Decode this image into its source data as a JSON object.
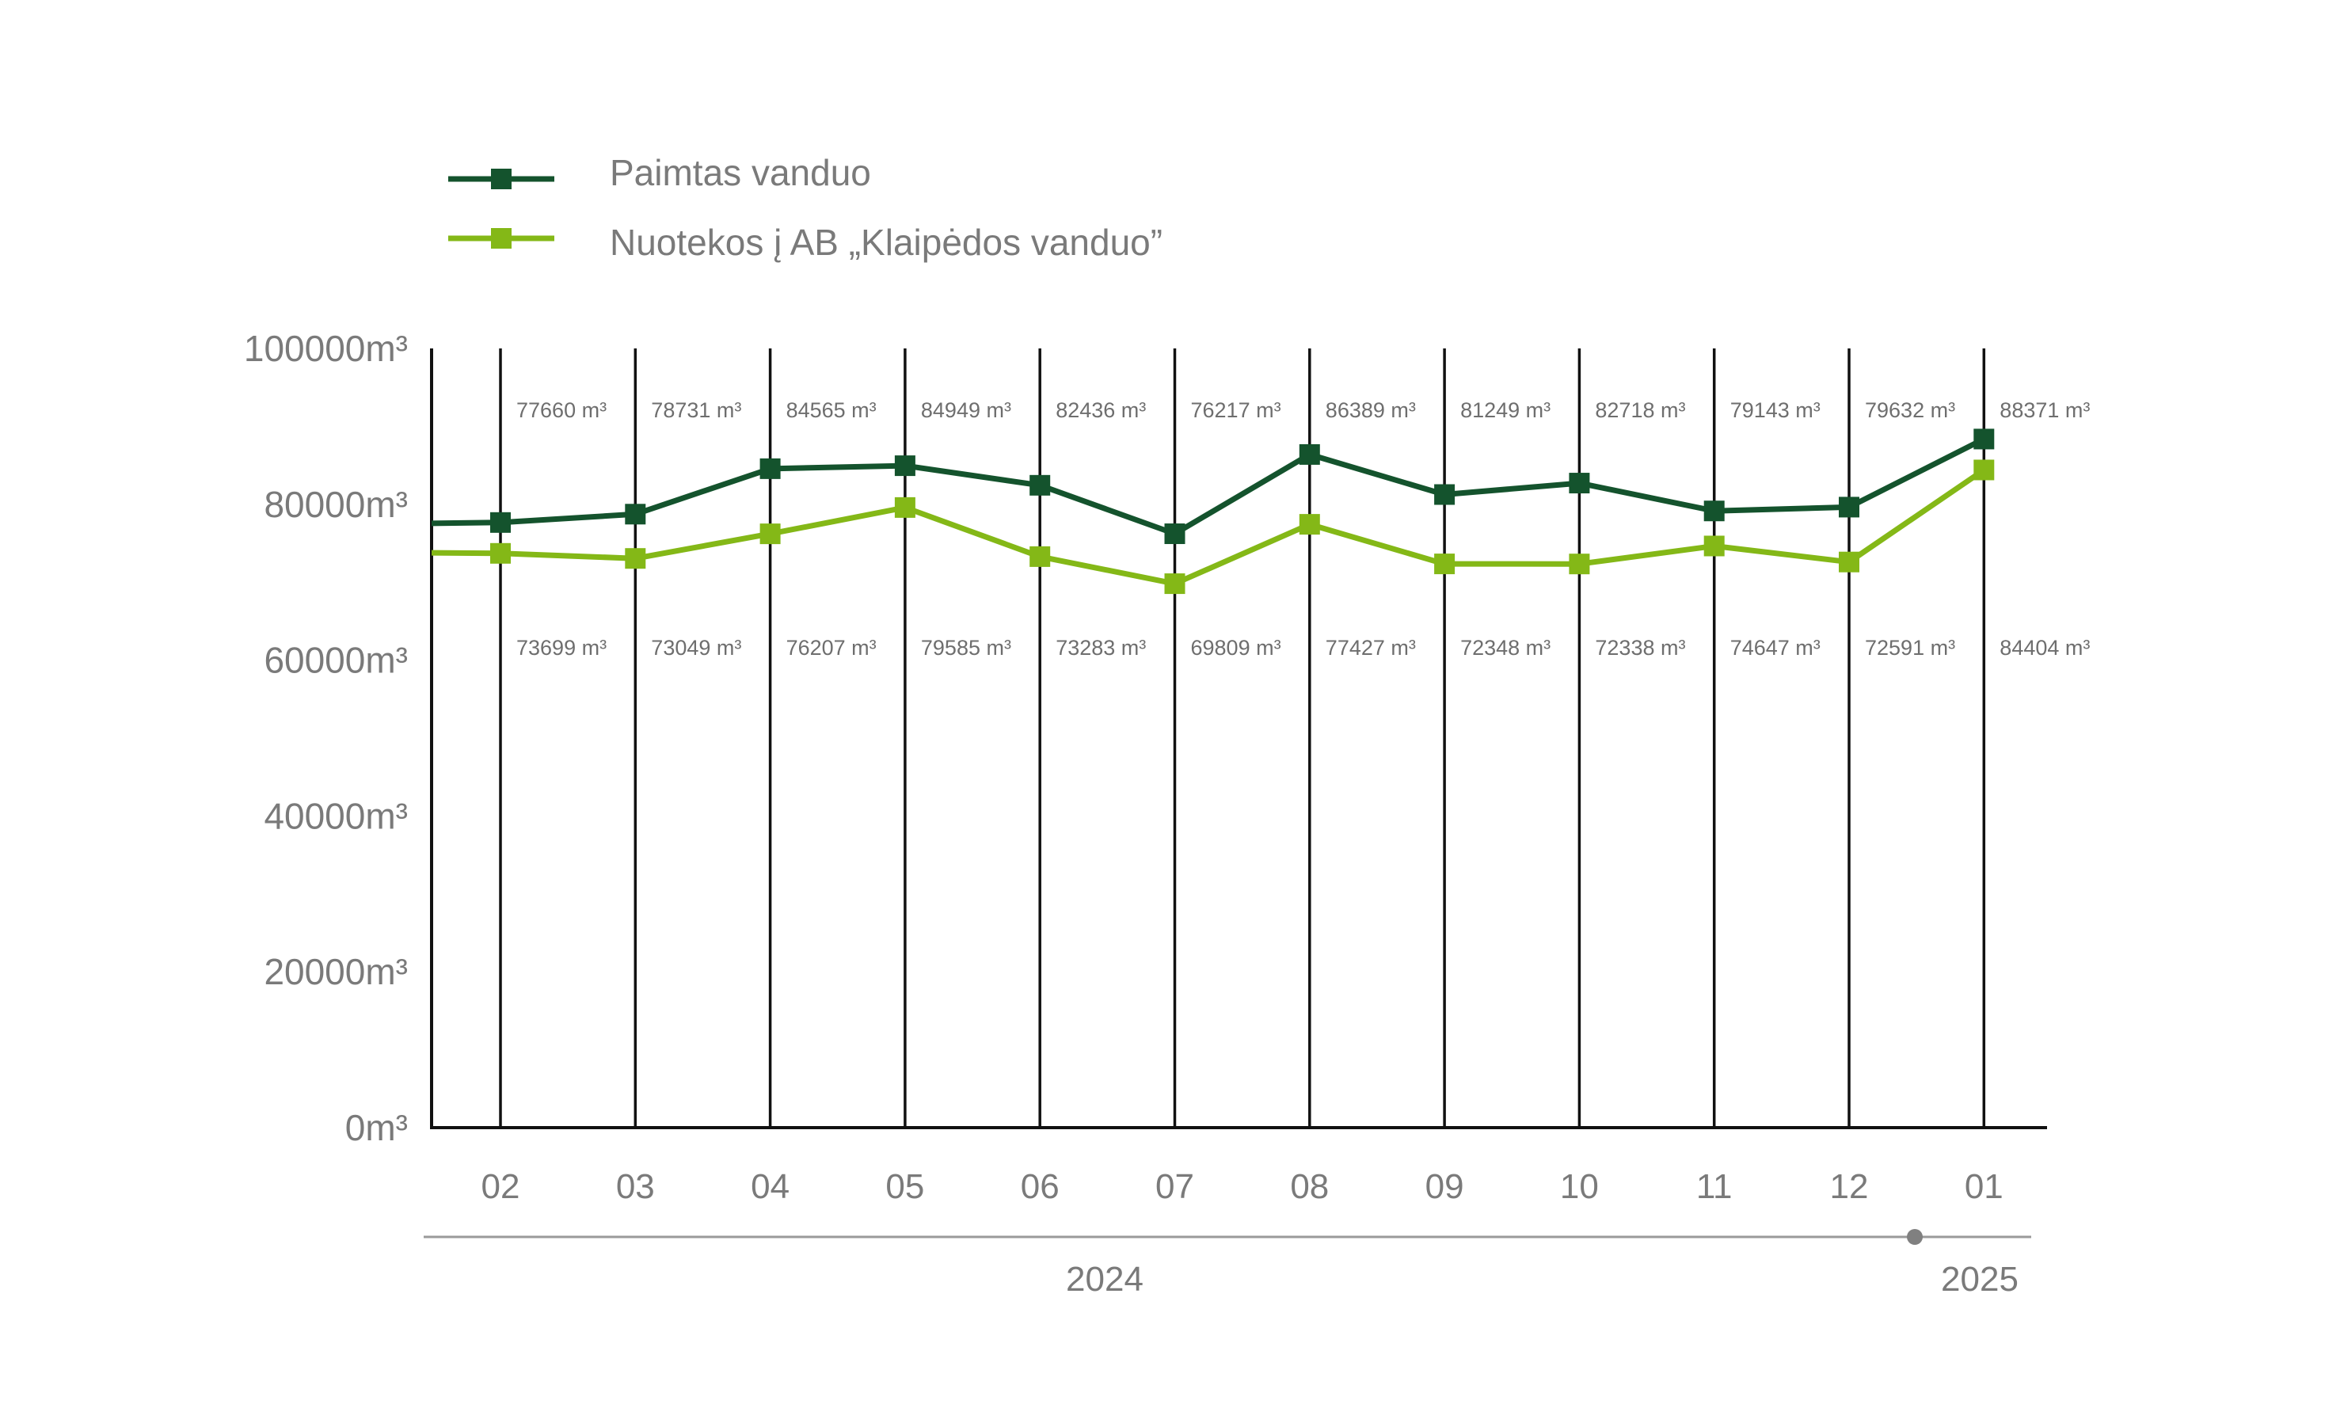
{
  "colors": {
    "series1": "#14532d",
    "series2": "#84b817",
    "axis": "#111111",
    "text": "#7a7a7a",
    "timeline": "#9a9a9a",
    "timeline_dot": "#808080"
  },
  "chart_data": {
    "type": "line",
    "categories": [
      "02",
      "03",
      "04",
      "05",
      "06",
      "07",
      "08",
      "09",
      "10",
      "11",
      "12",
      "01"
    ],
    "y_tick_labels": [
      "0m³",
      "20000m³",
      "40000m³",
      "60000m³",
      "80000m³",
      "100000m³"
    ],
    "y_ticks": [
      0,
      20000,
      40000,
      60000,
      80000,
      100000
    ],
    "ylim": [
      0,
      100000
    ],
    "value_unit": "m³",
    "series": [
      {
        "name": "Paimtas vanduo",
        "values": [
          77660,
          78731,
          84565,
          84949,
          82436,
          76217,
          86389,
          81249,
          82718,
          79143,
          79632,
          88371
        ],
        "labels": [
          "77660 m³",
          "78731 m³",
          "84565 m³",
          "84949 m³",
          "82436 m³",
          "76217 m³",
          "86389 m³",
          "81249 m³",
          "82718 m³",
          "79143 m³",
          "79632 m³",
          "88371 m³"
        ]
      },
      {
        "name": "Nuotekos į AB „Klaipėdos vanduo”",
        "values": [
          73699,
          73049,
          76207,
          79585,
          73283,
          69809,
          77427,
          72348,
          72338,
          74647,
          72591,
          84404
        ],
        "labels": [
          "73699 m³",
          "73049 m³",
          "76207 m³",
          "79585 m³",
          "73283 m³",
          "69809 m³",
          "77427 m³",
          "72348 m³",
          "72338 m³",
          "74647 m³",
          "72591 m³",
          "84404 m³"
        ]
      }
    ],
    "years": [
      "2024",
      "2025"
    ],
    "legend_position": "top-left",
    "grid": "vertical"
  }
}
